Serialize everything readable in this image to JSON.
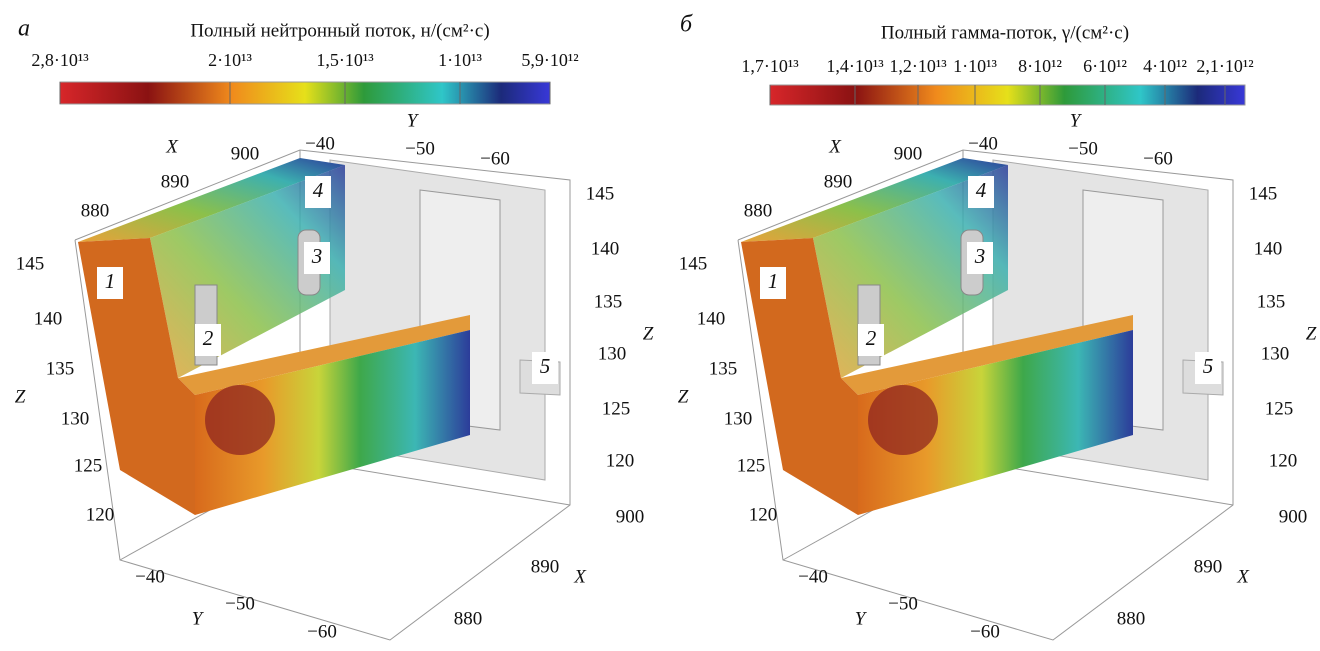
{
  "panels": [
    {
      "letter": "а",
      "colorbar": {
        "title": "Полный нейтронный поток, н/(см²·с)",
        "ticks": [
          "2,8·10¹³",
          "2·10¹³",
          "1,5·10¹³",
          "1·10¹³",
          "5,9·10¹²"
        ]
      },
      "axes": {
        "top_x": {
          "label": "X",
          "ticks": [
            "880",
            "890",
            "900"
          ]
        },
        "top_y": {
          "label": "Y",
          "ticks": [
            "−40",
            "−50",
            "−60"
          ]
        },
        "left_z": {
          "label": "Z",
          "ticks": [
            "145",
            "140",
            "135",
            "130",
            "125",
            "120"
          ]
        },
        "right_z": {
          "label": "Z",
          "ticks": [
            "145",
            "140",
            "135",
            "130",
            "125",
            "120"
          ]
        },
        "bottom_y": {
          "label": "Y",
          "ticks": [
            "−40",
            "−50",
            "−60"
          ]
        },
        "bottom_x": {
          "label": "X",
          "ticks": [
            "900",
            "890",
            "880"
          ]
        }
      },
      "callouts": [
        "1",
        "2",
        "3",
        "4",
        "5"
      ]
    },
    {
      "letter": "б",
      "colorbar": {
        "title": "Полный гамма-поток, γ/(см²·с)",
        "ticks": [
          "1,7·10¹³",
          "1,4·10¹³",
          "1,2·10¹³",
          "1·10¹³",
          "8·10¹²",
          "6·10¹²",
          "4·10¹²",
          "2,1·10¹²"
        ]
      },
      "axes": {
        "top_x": {
          "label": "X",
          "ticks": [
            "880",
            "890",
            "900"
          ]
        },
        "top_y": {
          "label": "Y",
          "ticks": [
            "−40",
            "−50",
            "−60"
          ]
        },
        "left_z": {
          "label": "Z",
          "ticks": [
            "145",
            "140",
            "135",
            "130",
            "125",
            "120"
          ]
        },
        "right_z": {
          "label": "Z",
          "ticks": [
            "145",
            "140",
            "135",
            "130",
            "125",
            "120"
          ]
        },
        "bottom_y": {
          "label": "Y",
          "ticks": [
            "−40",
            "−50",
            "−60"
          ]
        },
        "bottom_x": {
          "label": "X",
          "ticks": [
            "900",
            "890",
            "880"
          ]
        }
      },
      "callouts": [
        "1",
        "2",
        "3",
        "4",
        "5"
      ]
    }
  ]
}
